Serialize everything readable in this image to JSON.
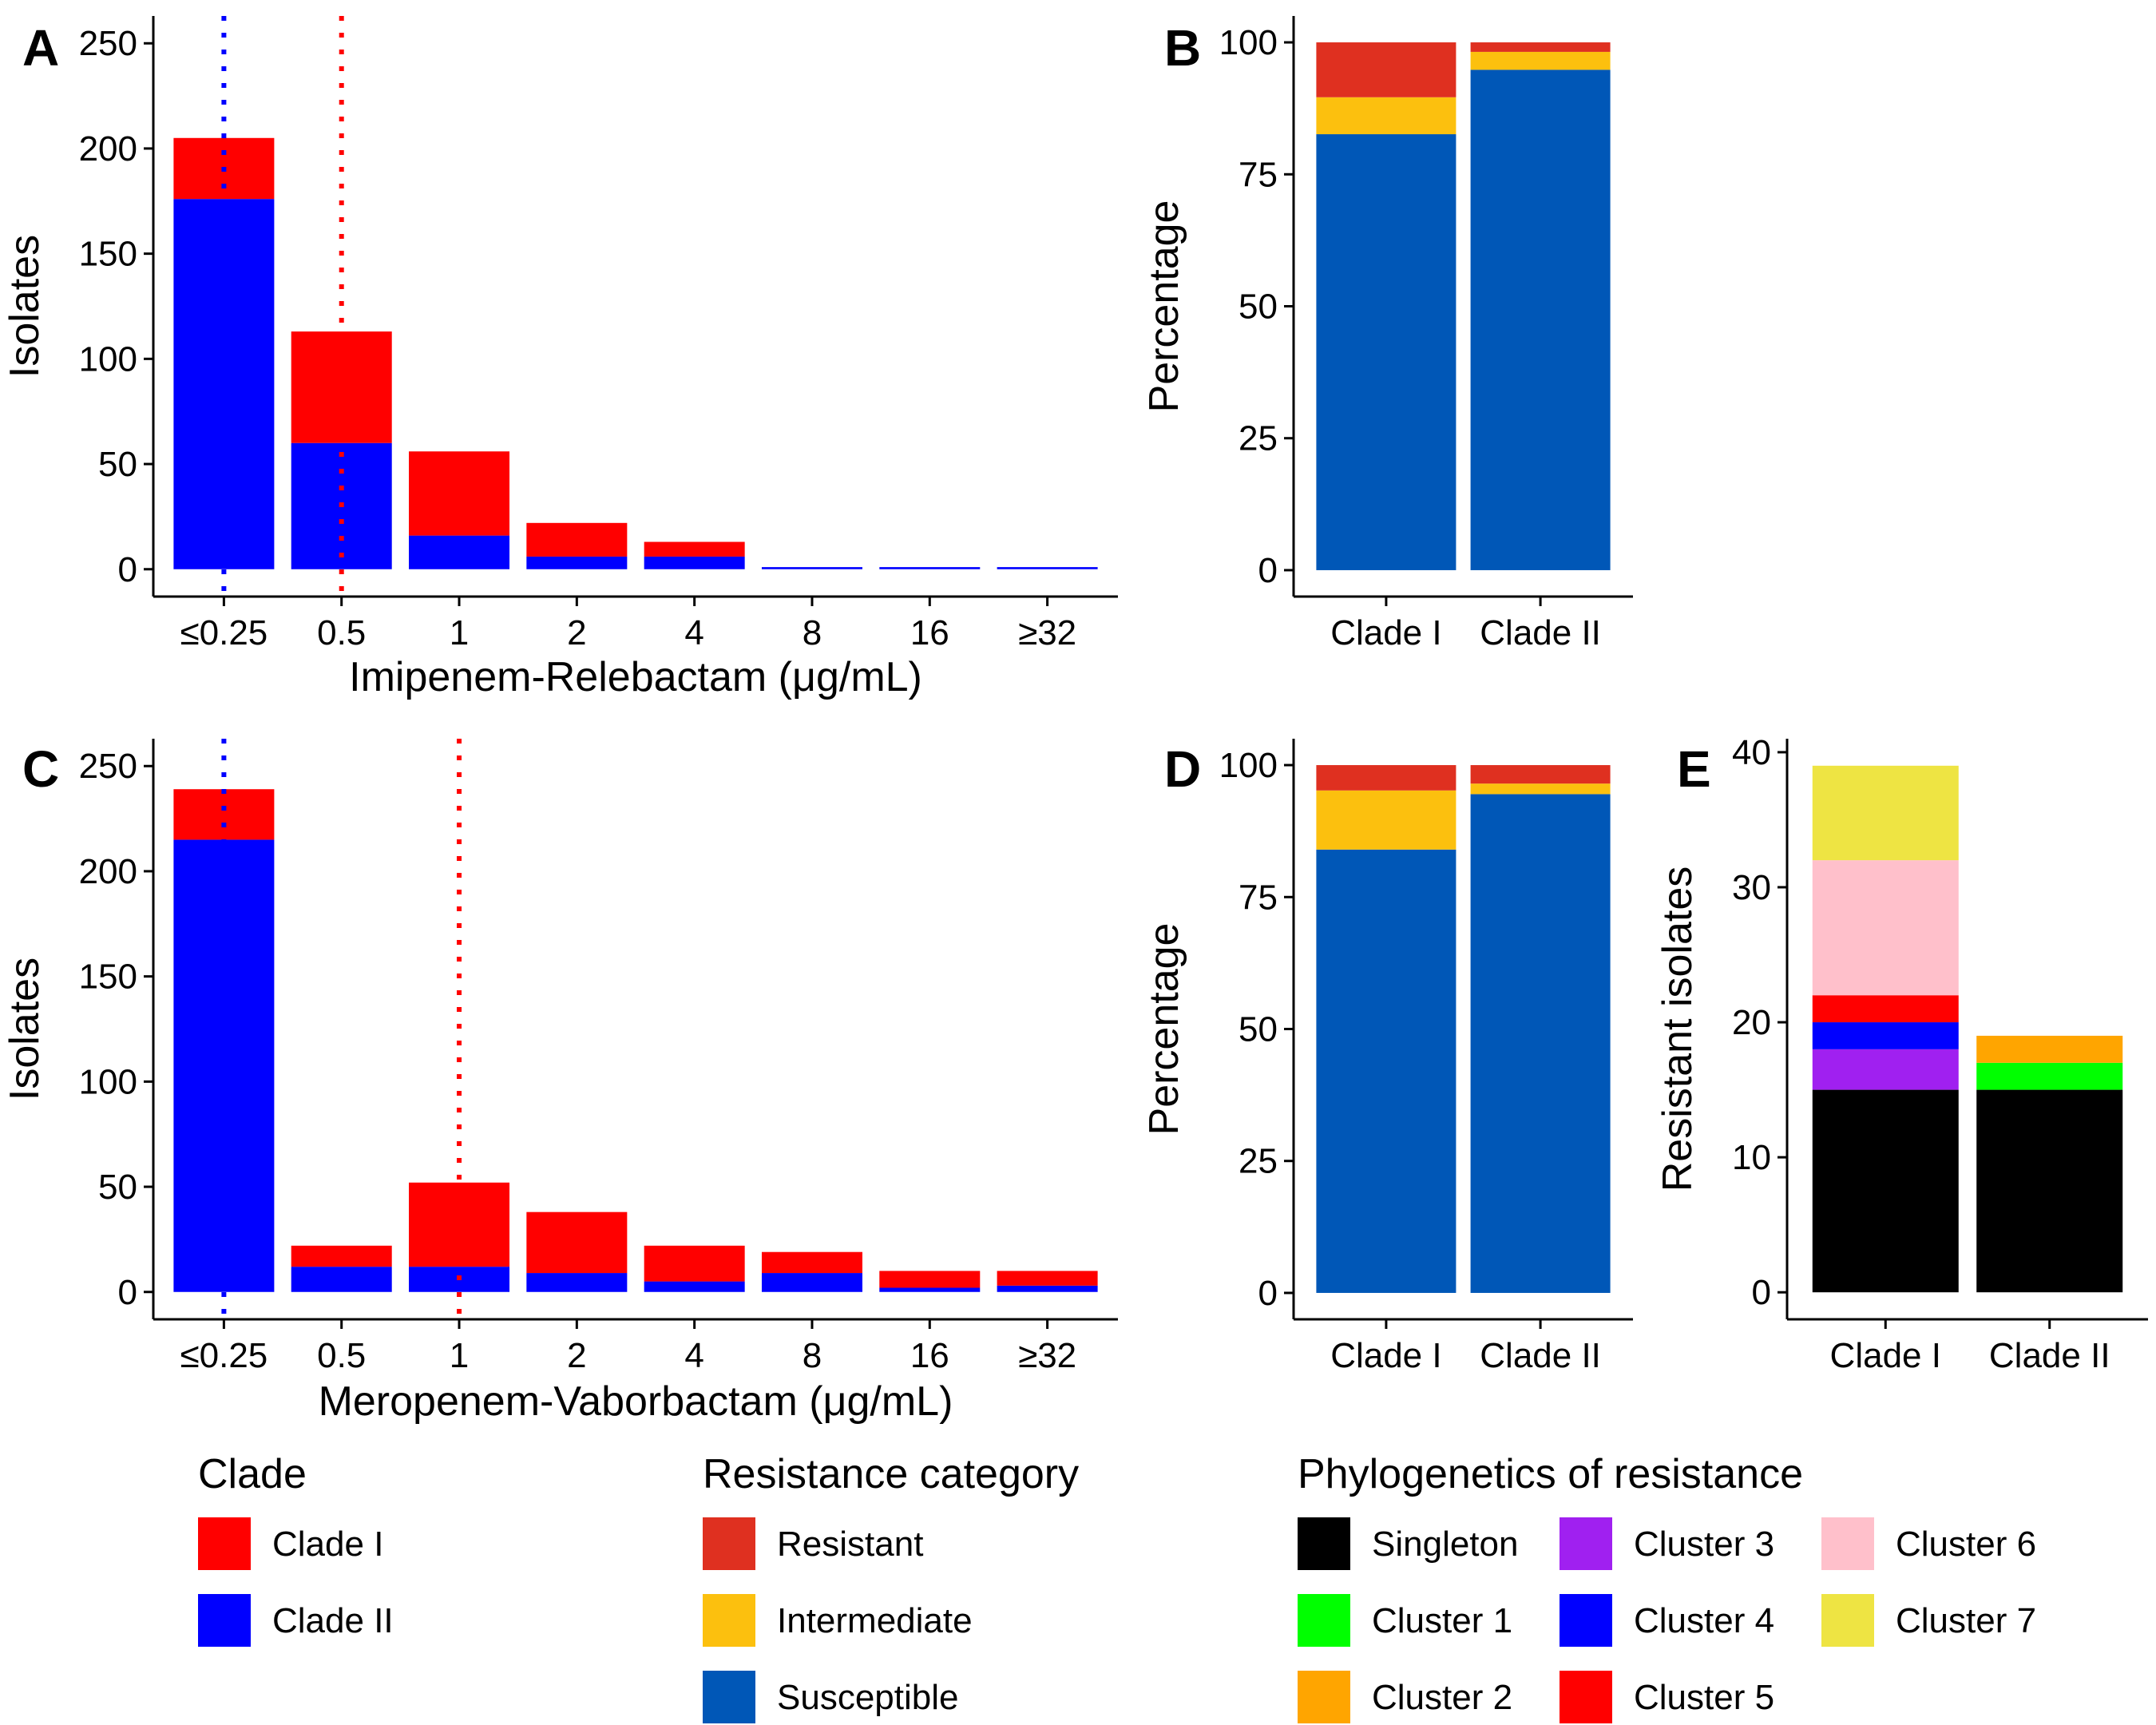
{
  "chart_data": [
    {
      "panel": "A",
      "type": "bar",
      "stacked": true,
      "categories": [
        "≤0.25",
        "0.5",
        "1",
        "2",
        "4",
        "8",
        "16",
        "≥32"
      ],
      "series": [
        {
          "name": "Clade II",
          "color": "#0000ff",
          "values": [
            176,
            60,
            16,
            6,
            6,
            1,
            1,
            1
          ]
        },
        {
          "name": "Clade I",
          "color": "#ff0000",
          "values": [
            29,
            53,
            40,
            16,
            7,
            0,
            0,
            0
          ]
        }
      ],
      "xlabel": "Imipenem-Relebactam (μg/mL)",
      "ylabel": "Isolates",
      "ylim": [
        -13,
        263
      ],
      "yticks": [
        0,
        50,
        100,
        150,
        200,
        250
      ],
      "breakpoints": [
        {
          "category": "≤0.25",
          "color": "#0000ff"
        },
        {
          "category": "0.5",
          "color": "#ff0000"
        }
      ]
    },
    {
      "panel": "B",
      "type": "bar",
      "stacked": true,
      "categories": [
        "Clade I",
        "Clade II"
      ],
      "series": [
        {
          "name": "Susceptible",
          "color": "#0057b7",
          "values": [
            82.6,
            94.8
          ]
        },
        {
          "name": "Intermediate",
          "color": "#fcc00e",
          "values": [
            7.0,
            3.4
          ]
        },
        {
          "name": "Resistant",
          "color": "#df3020",
          "values": [
            10.4,
            1.8
          ]
        }
      ],
      "xlabel": "",
      "ylabel": "Percentage",
      "ylim": [
        -5,
        105
      ],
      "yticks": [
        0,
        25,
        50,
        75,
        100
      ]
    },
    {
      "panel": "C",
      "type": "bar",
      "stacked": true,
      "categories": [
        "≤0.25",
        "0.5",
        "1",
        "2",
        "4",
        "8",
        "16",
        "≥32"
      ],
      "series": [
        {
          "name": "Clade II",
          "color": "#0000ff",
          "values": [
            215,
            12,
            12,
            9,
            5,
            9,
            2,
            3
          ]
        },
        {
          "name": "Clade I",
          "color": "#ff0000",
          "values": [
            24,
            10,
            40,
            29,
            17,
            10,
            8,
            7
          ]
        }
      ],
      "xlabel": "Meropenem-Vaborbactam (μg/mL)",
      "ylabel": "Isolates",
      "ylim": [
        -13,
        263
      ],
      "yticks": [
        0,
        50,
        100,
        150,
        200,
        250
      ],
      "breakpoints": [
        {
          "category": "≤0.25",
          "color": "#0000ff"
        },
        {
          "category": "1",
          "color": "#ff0000"
        }
      ]
    },
    {
      "panel": "D",
      "type": "bar",
      "stacked": true,
      "categories": [
        "Clade I",
        "Clade II"
      ],
      "series": [
        {
          "name": "Susceptible",
          "color": "#0057b7",
          "values": [
            84,
            94.5
          ]
        },
        {
          "name": "Intermediate",
          "color": "#fcc00e",
          "values": [
            11.2,
            2.0
          ]
        },
        {
          "name": "Resistant",
          "color": "#df3020",
          "values": [
            4.8,
            3.5
          ]
        }
      ],
      "xlabel": "",
      "ylabel": "Percentage",
      "ylim": [
        -5,
        105
      ],
      "yticks": [
        0,
        25,
        50,
        75,
        100
      ]
    },
    {
      "panel": "E",
      "type": "bar",
      "stacked": true,
      "categories": [
        "Clade I",
        "Clade II"
      ],
      "series": [
        {
          "name": "Singleton",
          "color": "#000000",
          "values": [
            15,
            15
          ]
        },
        {
          "name": "Cluster 1",
          "color": "#00ff00",
          "values": [
            0,
            2
          ]
        },
        {
          "name": "Cluster 2",
          "color": "#ffa500",
          "values": [
            0,
            2
          ]
        },
        {
          "name": "Cluster 3",
          "color": "#a020f0",
          "values": [
            3,
            0
          ]
        },
        {
          "name": "Cluster 4",
          "color": "#0000ff",
          "values": [
            2,
            0
          ]
        },
        {
          "name": "Cluster 5",
          "color": "#ff0000",
          "values": [
            2,
            0
          ]
        },
        {
          "name": "Cluster 6",
          "color": "#ffc0cb",
          "values": [
            10,
            0
          ]
        },
        {
          "name": "Cluster 7",
          "color": "#eee443",
          "values": [
            7,
            0
          ]
        }
      ],
      "xlabel": "",
      "ylabel": "Resistant isolates",
      "ylim": [
        -2,
        41
      ],
      "yticks": [
        0,
        10,
        20,
        30,
        40
      ]
    }
  ],
  "legends": [
    {
      "title": "Clade",
      "items": [
        {
          "label": "Clade I",
          "color": "#ff0000"
        },
        {
          "label": "Clade II",
          "color": "#0000ff"
        }
      ]
    },
    {
      "title": "Resistance category",
      "items": [
        {
          "label": "Resistant",
          "color": "#df3020"
        },
        {
          "label": "Intermediate",
          "color": "#fcc00e"
        },
        {
          "label": "Susceptible",
          "color": "#0057b7"
        }
      ]
    },
    {
      "title": "Phylogenetics of resistance",
      "items": [
        {
          "label": "Singleton",
          "color": "#000000"
        },
        {
          "label": "Cluster 1",
          "color": "#00ff00"
        },
        {
          "label": "Cluster 2",
          "color": "#ffa500"
        },
        {
          "label": "Cluster 3",
          "color": "#a020f0"
        },
        {
          "label": "Cluster 4",
          "color": "#0000ff"
        },
        {
          "label": "Cluster 5",
          "color": "#ff0000"
        },
        {
          "label": "Cluster 6",
          "color": "#ffc0cb"
        },
        {
          "label": "Cluster 7",
          "color": "#eee443"
        }
      ]
    }
  ]
}
